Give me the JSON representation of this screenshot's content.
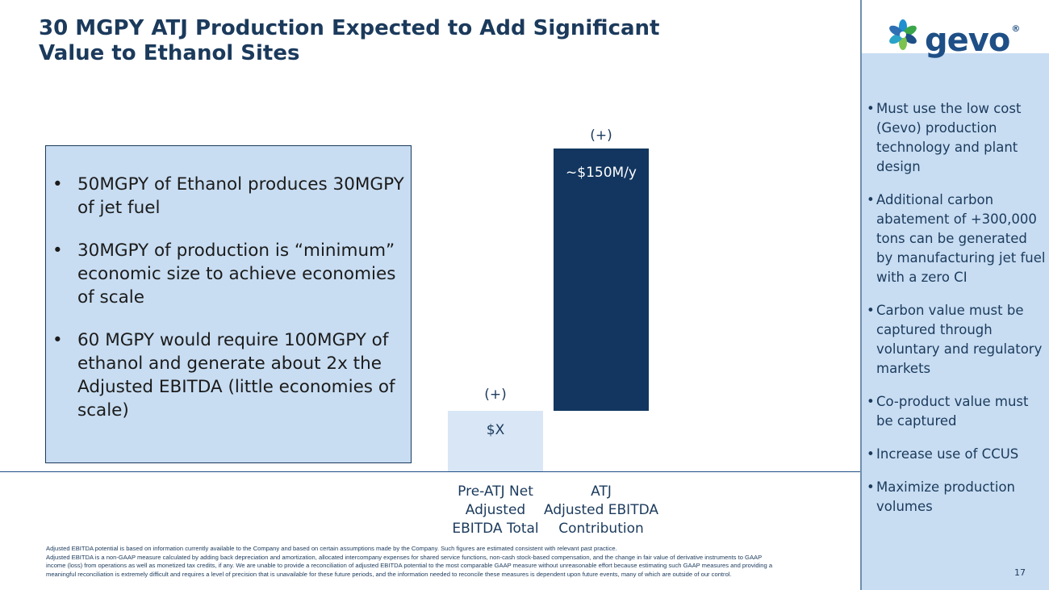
{
  "header": {
    "title_line1": "30 MGPY ATJ Production Expected to Add Significant",
    "title_line2": "Value to Ethanol Sites"
  },
  "logo": {
    "text": "gevo",
    "mark": "®"
  },
  "left_box": {
    "bullets": [
      "50MGPY of Ethanol produces 30MGPY of jet fuel",
      "30MGPY of production is “minimum” economic size to achieve economies of scale",
      "60 MGPY would require 100MGPY of ethanol and generate about 2x the Adjusted EBITDA (little economies of scale)"
    ]
  },
  "chart_data": {
    "type": "bar",
    "categories": [
      "Pre-ATJ Net\nAdjusted\nEBITDA Total",
      "ATJ\nAdjusted EBITDA\nContribution"
    ],
    "value_labels": [
      "$X",
      "~$150M/y"
    ],
    "increment_labels": [
      "(+)",
      "(+)"
    ],
    "title": "",
    "xlabel": "",
    "ylabel": ""
  },
  "right_panel": {
    "bullets": [
      "Must use the low cost (Gevo) production technology and plant design",
      "Additional carbon abatement of +300,000 tons can be generated by manufacturing jet fuel with a zero CI",
      "Carbon value must be captured through voluntary and regulatory markets",
      "Co-product value must be captured",
      "Increase use of CCUS",
      "Maximize production volumes"
    ]
  },
  "footnote": {
    "line1": "Adjusted EBITDA potential is based on information currently available to the Company and based on certain assumptions made by the Company. Such figures are estimated consistent with relevant past practice.",
    "line2": "Adjusted EBITDA is a non-GAAP measure calculated by adding back depreciation and amortization, allocated intercompany expenses for shared service functions, non-cash stock-based compensation, and the change in fair value of derivative instruments to GAAP income (loss) from operations as well as monetized tax credits, if any. We are unable to provide a reconciliation of adjusted EBITDA potential to the most comparable GAAP measure without unreasonable effort because estimating such GAAP measures and providing a meaningful reconciliation is extremely difficult and requires a level of precision that is unavailable for these future periods, and the information needed to reconcile these measures is dependent upon future events, many of which are outside of our control."
  },
  "page_number": "17",
  "colors": {
    "navy": "#12365f",
    "title": "#1b3a5c",
    "light_blue_panel": "#c8ddf2",
    "pale_bar": "#d8e6f5"
  }
}
